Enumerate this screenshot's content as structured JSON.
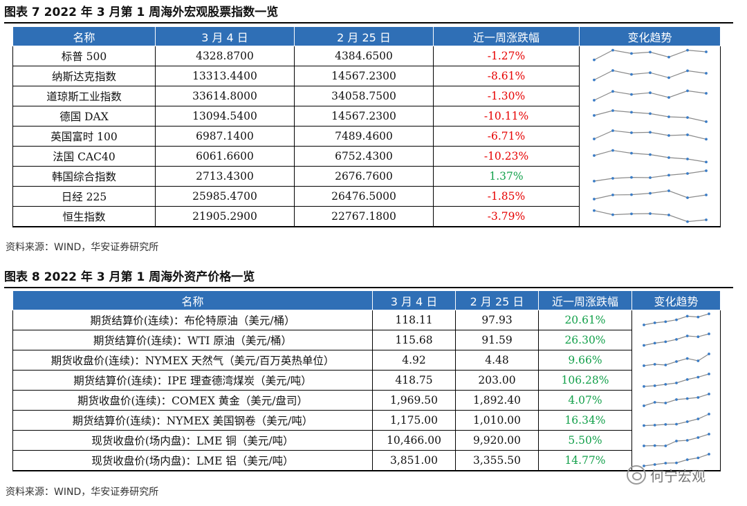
{
  "figure7": {
    "title": "图表 7  2022 年 3 月第 1 周海外宏观股票指数一览",
    "headers": [
      "名称",
      "3 月 4 日",
      "2 月 25 日",
      "近一周涨跌幅",
      "变化趋势"
    ],
    "rows": [
      {
        "name": "标普 500",
        "mar4": "4328.8700",
        "feb25": "4384.6500",
        "chg": "-1.27%",
        "dir": "neg",
        "trend": [
          0.22,
          0.92,
          0.68,
          0.78,
          0.42,
          0.92,
          0.8
        ]
      },
      {
        "name": "纳斯达克指数",
        "mar4": "13313.4400",
        "feb25": "14567.2300",
        "chg": "-8.61%",
        "dir": "neg",
        "trend": [
          0.22,
          0.9,
          0.62,
          0.74,
          0.38,
          0.88,
          0.7
        ]
      },
      {
        "name": "道琼斯工业指数",
        "mar4": "33614.8000",
        "feb25": "34058.7500",
        "chg": "-1.30%",
        "dir": "neg",
        "trend": [
          0.2,
          0.84,
          0.62,
          0.74,
          0.4,
          0.88,
          0.7
        ]
      },
      {
        "name": "德国 DAX",
        "mar4": "13094.5400",
        "feb25": "14567.2300",
        "chg": "-10.11%",
        "dir": "neg",
        "trend": [
          0.55,
          0.9,
          0.78,
          0.68,
          0.45,
          0.4,
          0.1
        ]
      },
      {
        "name": "英国富时 100",
        "mar4": "6987.1400",
        "feb25": "7489.4600",
        "chg": "-6.71%",
        "dir": "neg",
        "trend": [
          0.3,
          0.9,
          0.75,
          0.78,
          0.55,
          0.6,
          0.28
        ]
      },
      {
        "name": "法国 CAC40",
        "mar4": "6061.6600",
        "feb25": "6752.4300",
        "chg": "-10.23%",
        "dir": "neg",
        "trend": [
          0.55,
          0.92,
          0.72,
          0.62,
          0.4,
          0.3,
          0.08
        ]
      },
      {
        "name": "韩国综合指数",
        "mar4": "2713.4300",
        "feb25": "2676.7600",
        "chg": "1.37%",
        "dir": "pos",
        "trend": [
          0.15,
          0.35,
          0.42,
          0.4,
          0.58,
          0.7,
          0.9
        ]
      },
      {
        "name": "日经 225",
        "mar4": "25985.4700",
        "feb25": "26476.5000",
        "chg": "-1.85%",
        "dir": "neg",
        "trend": [
          0.3,
          0.6,
          0.62,
          0.72,
          0.9,
          0.4,
          0.6
        ]
      },
      {
        "name": "恒生指数",
        "mar4": "21905.2900",
        "feb25": "22767.1800",
        "chg": "-3.79%",
        "dir": "neg",
        "trend": [
          0.92,
          0.62,
          0.68,
          0.7,
          0.6,
          0.12,
          0.25
        ]
      }
    ],
    "source": "资料来源：WIND，华安证券研究所"
  },
  "figure8": {
    "title": "图表 8  2022 年 3 月第 1 周海外资产价格一览",
    "headers": [
      "名称",
      "3 月 4 日",
      "2 月 25 日",
      "近一周涨跌幅",
      "变化趋势"
    ],
    "rows": [
      {
        "name": "期货结算价(连续)：布伦特原油（美元/桶）",
        "mar4": "118.11",
        "feb25": "97.93",
        "chg": "20.61%",
        "dir": "pos",
        "trend": [
          0.15,
          0.3,
          0.38,
          0.52,
          0.78,
          0.72,
          0.95
        ]
      },
      {
        "name": "期货结算价(连续)：WTI 原油（美元/桶）",
        "mar4": "115.68",
        "feb25": "91.59",
        "chg": "26.30%",
        "dir": "pos",
        "trend": [
          0.12,
          0.28,
          0.38,
          0.55,
          0.8,
          0.74,
          0.95
        ]
      },
      {
        "name": "期货收盘价(连续)：NYMEX 天然气（美元/百万英热单位）",
        "mar4": "4.92",
        "feb25": "4.48",
        "chg": "9.66%",
        "dir": "pos",
        "trend": [
          0.1,
          0.2,
          0.15,
          0.4,
          0.62,
          0.45,
          0.95
        ]
      },
      {
        "name": "期货结算价(连续)：IPE 理查德湾煤炭（美元/吨）",
        "mar4": "418.75",
        "feb25": "203.00",
        "chg": "106.28%",
        "dir": "pos",
        "trend": [
          0.05,
          0.1,
          0.2,
          0.3,
          0.55,
          0.72,
          0.95
        ]
      },
      {
        "name": "期货收盘价(连续)：COMEX 黄金（美元/盘司）",
        "mar4": "1,969.50",
        "feb25": "1,892.40",
        "chg": "4.07%",
        "dir": "pos",
        "trend": [
          0.1,
          0.35,
          0.3,
          0.55,
          0.62,
          0.7,
          0.95
        ]
      },
      {
        "name": "期货结算价(连续)：NYMEX 美国钢卷（美元/吨）",
        "mar4": "1,175.00",
        "feb25": "1,010.00",
        "chg": "16.34%",
        "dir": "pos",
        "trend": [
          0.12,
          0.15,
          0.2,
          0.22,
          0.4,
          0.6,
          0.95
        ]
      },
      {
        "name": "现货收盘价(场内盘)：LME 铜（美元/吨）",
        "mar4": "10,466.00",
        "feb25": "9,920.00",
        "chg": "5.50%",
        "dir": "pos",
        "trend": [
          0.1,
          0.12,
          0.1,
          0.45,
          0.5,
          0.7,
          0.95
        ]
      },
      {
        "name": "现货收盘价(场内盘)：LME 铝（美元/吨）",
        "mar4": "3,851.00",
        "feb25": "3,355.50",
        "chg": "14.77%",
        "dir": "pos",
        "trend": [
          0.1,
          0.2,
          0.3,
          0.32,
          0.55,
          0.68,
          0.95
        ]
      }
    ],
    "source": "资料来源：WIND，华安证券研究所"
  },
  "watermark": "何宁宏观",
  "colors": {
    "header_bg": "#2f6fb6",
    "negative": "#e60000",
    "positive": "#12a04a",
    "spark_line": "#8a8a8a",
    "spark_dot": "#3a7cc6"
  }
}
